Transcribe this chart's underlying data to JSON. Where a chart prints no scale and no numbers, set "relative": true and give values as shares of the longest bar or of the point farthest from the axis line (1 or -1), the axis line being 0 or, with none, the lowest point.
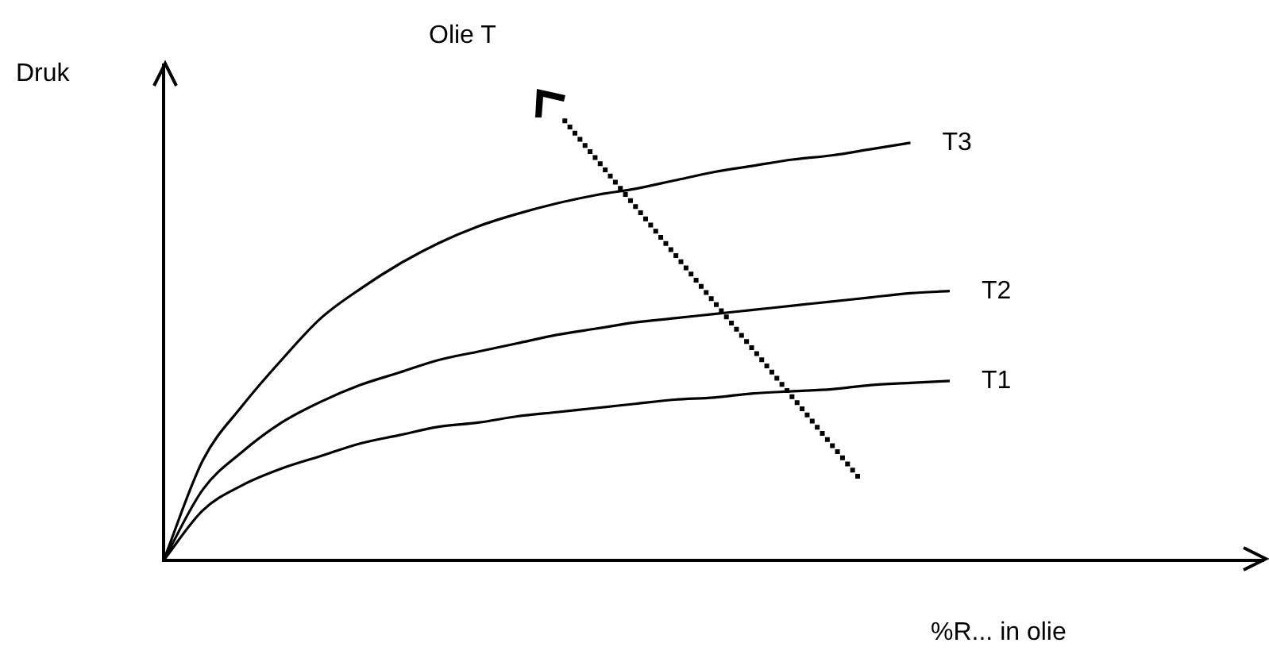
{
  "chart_data": {
    "type": "line",
    "relative": true,
    "xlabel": "%R... in olie",
    "ylabel": "Druk",
    "annotations": [
      "Olie T"
    ],
    "legend": false,
    "marker": "none",
    "tick_labels": false,
    "categories": [
      null,
      null,
      null,
      null,
      null,
      null,
      null,
      null,
      null,
      null,
      null,
      null,
      null,
      null,
      null,
      null,
      null,
      null,
      null,
      null,
      null,
      null,
      null,
      null,
      null,
      null,
      null,
      null,
      null
    ],
    "series": [
      {
        "name": "T3",
        "color": "#000000",
        "values": [
          0,
          0.24,
          0.37,
          0.48,
          0.58,
          0.65,
          0.71,
          0.76,
          0.8,
          0.83,
          0.855,
          0.875,
          0.89,
          0.91,
          0.93,
          0.945,
          0.96,
          0.97,
          0.985,
          1,
          null,
          null,
          null,
          null,
          null,
          null,
          null,
          null,
          null
        ]
      },
      {
        "name": "T2",
        "color": "#000000",
        "values": [
          0,
          0.17,
          0.26,
          0.33,
          0.38,
          0.42,
          0.45,
          0.48,
          0.5,
          0.52,
          0.54,
          0.555,
          0.57,
          0.58,
          0.59,
          0.6,
          0.61,
          0.62,
          0.63,
          0.64,
          0.645,
          null,
          null,
          null,
          null,
          null,
          null,
          null,
          null
        ]
      },
      {
        "name": "T1",
        "color": "#000000",
        "values": [
          0,
          0.12,
          0.18,
          0.22,
          0.25,
          0.28,
          0.3,
          0.32,
          0.33,
          0.345,
          0.355,
          0.365,
          0.375,
          0.385,
          0.39,
          0.4,
          0.405,
          0.41,
          0.42,
          0.425,
          0.43,
          null,
          null,
          null,
          null,
          null,
          null,
          null,
          null
        ]
      }
    ]
  }
}
